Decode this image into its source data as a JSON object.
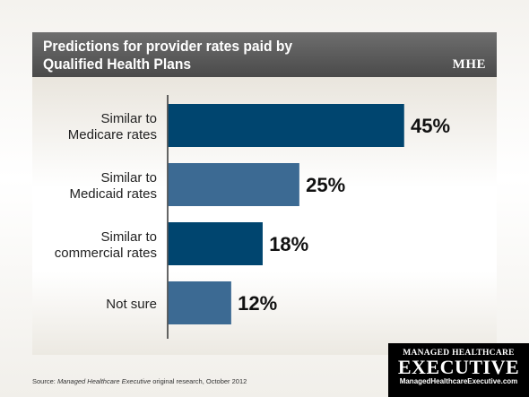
{
  "header": {
    "title_line1": "Predictions for provider rates paid by",
    "title_line2": "Qualified Health Plans",
    "logo": "MHE"
  },
  "chart_data": {
    "type": "bar",
    "orientation": "horizontal",
    "title": "Predictions for provider rates paid by Qualified Health Plans",
    "categories": [
      [
        "Similar to",
        "Medicare rates"
      ],
      [
        "Similar to",
        "Medicaid rates"
      ],
      [
        "Similar to",
        "commercial rates"
      ],
      [
        "Not sure"
      ]
    ],
    "values": [
      45,
      25,
      18,
      12
    ],
    "value_labels": [
      "45%",
      "25%",
      "18%",
      "12%"
    ],
    "colors": [
      "#00456f",
      "#3c6a93",
      "#00456f",
      "#3c6a93"
    ],
    "xlim": [
      0,
      50
    ],
    "grid": false,
    "legend": "none"
  },
  "source": {
    "prefix": "Source: ",
    "italic": "Managed Healthcare Executive",
    "suffix": " original research, October 2012"
  },
  "brand": {
    "top": "MANAGED HEALTHCARE",
    "main": "EXECUTIVE",
    "url": "ManagedHealthcareExecutive.com"
  }
}
